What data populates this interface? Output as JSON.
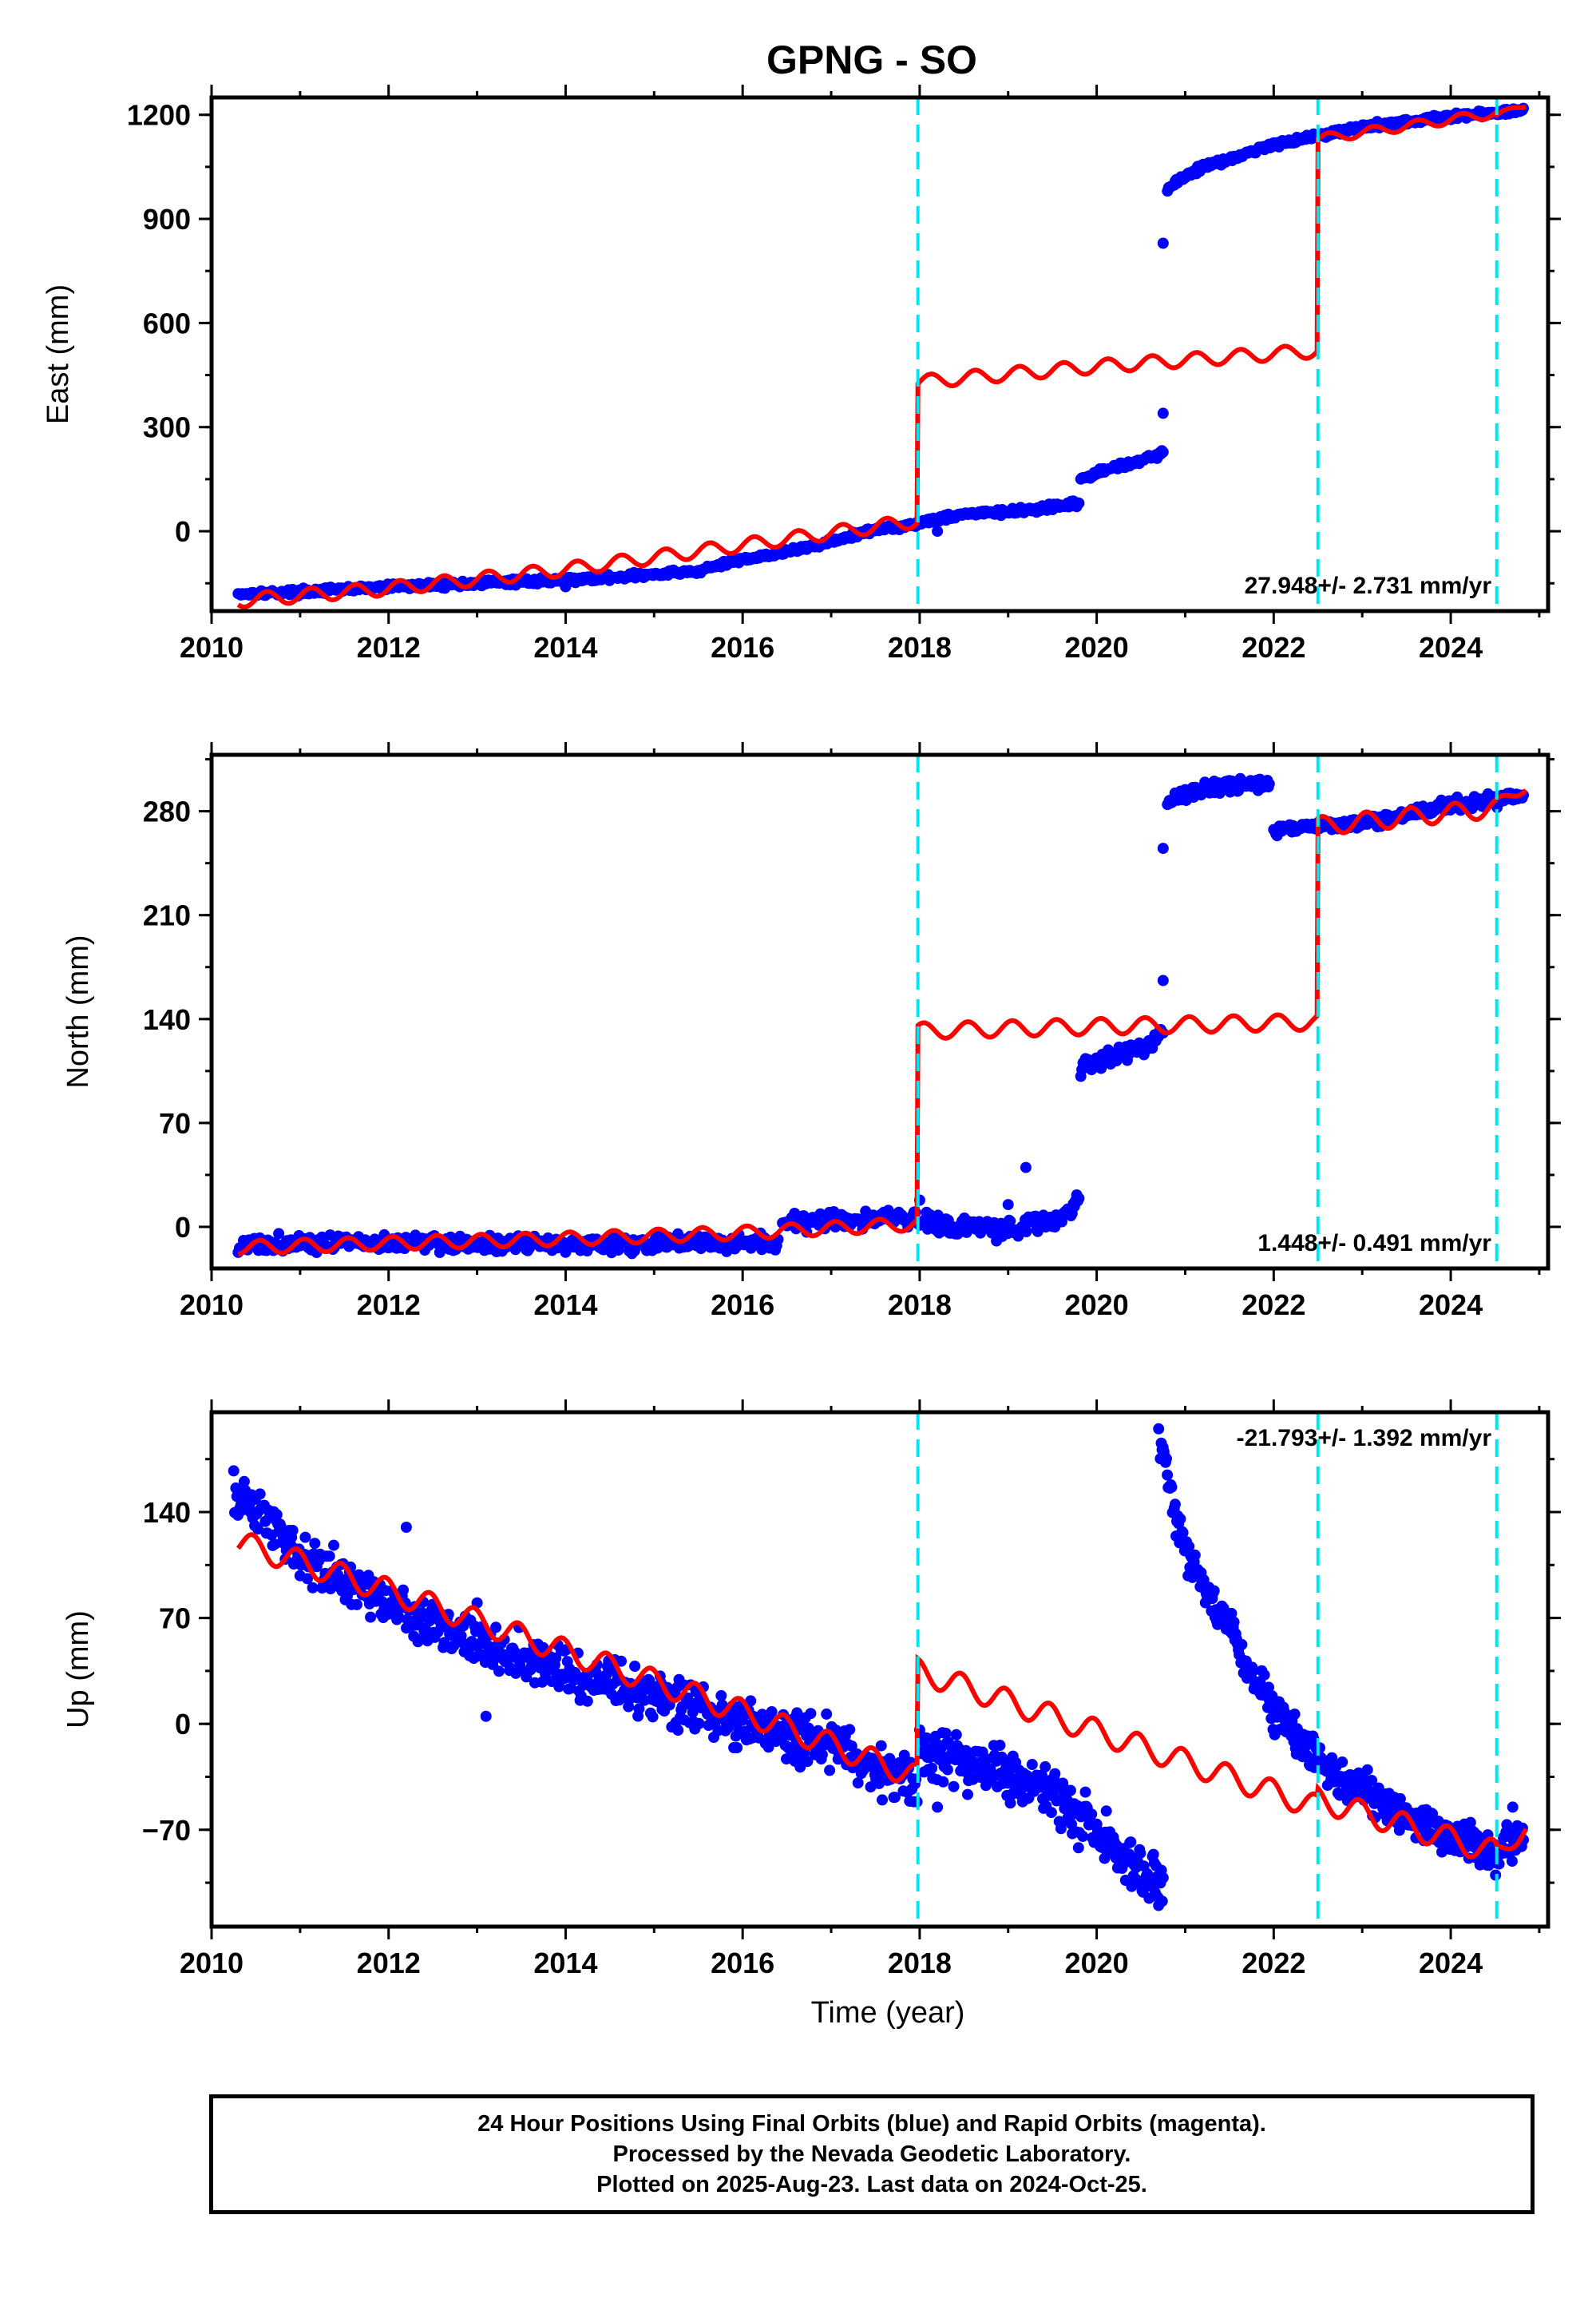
{
  "figure_title": "GPNG - SO",
  "footer": {
    "line1": "24 Hour Positions Using Final Orbits (blue) and Rapid Orbits (magenta).",
    "line2": "Processed by the Nevada Geodetic Laboratory.",
    "line3": "Plotted on 2025-Aug-23. Last data on 2024-Oct-25."
  },
  "colors": {
    "data": "#0000ff",
    "model": "#ff0000",
    "event_lines": "#00e5ee",
    "frame": "#000000"
  },
  "chart_data": [
    {
      "type": "scatter",
      "panel": "east",
      "title": "GPNG - SO",
      "ylabel": "East (mm)",
      "xlabel": "",
      "xlim": [
        2010.0,
        2025.1
      ],
      "ylim": [
        -230,
        1250
      ],
      "x_ticks": [
        2010,
        2012,
        2014,
        2016,
        2018,
        2020,
        2022,
        2024
      ],
      "y_ticks": [
        0,
        300,
        600,
        900,
        1200
      ],
      "y_tick_labels": [
        "0",
        "300",
        "600",
        "900",
        "1200"
      ],
      "event_lines": [
        2017.98,
        2022.5,
        2024.52
      ],
      "annotation": "27.948+/- 2.731 mm/yr",
      "series": [
        {
          "kind": "observed",
          "segments": [
            {
              "points": [
                [
                  2010.3,
                  -180
                ],
                [
                  2011.0,
                  -175
                ],
                [
                  2012.0,
                  -160
                ],
                [
                  2013.0,
                  -150
                ],
                [
                  2014.0,
                  -140
                ],
                [
                  2015.0,
                  -125
                ],
                [
                  2015.5,
                  -115
                ],
                [
                  2016.0,
                  -80
                ],
                [
                  2016.5,
                  -60
                ],
                [
                  2017.0,
                  -30
                ],
                [
                  2017.5,
                  5
                ],
                [
                  2017.97,
                  20
                ]
              ],
              "noise": 6,
              "count": 500
            },
            {
              "points": [
                [
                  2018.0,
                  25
                ],
                [
                  2018.5,
                  50
                ],
                [
                  2019.0,
                  55
                ],
                [
                  2019.5,
                  68
                ],
                [
                  2019.8,
                  80
                ]
              ],
              "noise": 6,
              "count": 140
            },
            {
              "points": [
                [
                  2019.82,
                  150
                ],
                [
                  2020.2,
                  185
                ],
                [
                  2020.5,
                  205
                ],
                [
                  2020.75,
                  225
                ]
              ],
              "noise": 6,
              "count": 70
            },
            {
              "points": [
                [
                  2020.8,
                  980
                ],
                [
                  2020.9,
                  1010
                ],
                [
                  2021.2,
                  1050
                ],
                [
                  2021.6,
                  1080
                ],
                [
                  2022.0,
                  1115
                ],
                [
                  2022.5,
                  1140
                ],
                [
                  2023.0,
                  1165
                ],
                [
                  2023.5,
                  1180
                ],
                [
                  2024.0,
                  1195
                ],
                [
                  2024.5,
                  1205
                ],
                [
                  2024.82,
                  1215
                ]
              ],
              "noise": 6,
              "count": 320
            }
          ],
          "outliers": [
            [
              2020.75,
              830
            ],
            [
              2020.75,
              340
            ],
            [
              2018.2,
              0
            ],
            [
              2014.0,
              -160
            ]
          ]
        },
        {
          "kind": "model",
          "segments": [
            {
              "points": [
                [
                  2010.3,
                  -200
                ],
                [
                  2012.0,
                  -165
                ],
                [
                  2014.0,
                  -110
                ],
                [
                  2016.0,
                  -40
                ],
                [
                  2017.97,
                  30
                ]
              ],
              "amp": 22
            },
            {
              "points": [
                [
                  2017.98,
                  430
                ],
                [
                  2020.0,
                  475
                ],
                [
                  2022.49,
                  520
                ]
              ],
              "amp": 22
            },
            {
              "points": [
                [
                  2022.5,
                  1130
                ],
                [
                  2024.51,
                  1205
                ]
              ],
              "amp": 15
            },
            {
              "points": [
                [
                  2024.52,
                  1198
                ],
                [
                  2024.85,
                  1230
                ]
              ],
              "amp": 8
            }
          ]
        }
      ]
    },
    {
      "type": "scatter",
      "panel": "north",
      "title": "",
      "ylabel": "North (mm)",
      "xlabel": "",
      "xlim": [
        2010.0,
        2025.1
      ],
      "ylim": [
        -28,
        318
      ],
      "x_ticks": [
        2010,
        2012,
        2014,
        2016,
        2018,
        2020,
        2022,
        2024
      ],
      "y_ticks": [
        0,
        70,
        140,
        210,
        280
      ],
      "y_tick_labels": [
        "0",
        "70",
        "140",
        "210",
        "280"
      ],
      "event_lines": [
        2017.98,
        2022.5,
        2024.52
      ],
      "annotation": "1.448+/- 0.491 mm/yr",
      "series": [
        {
          "kind": "observed",
          "segments": [
            {
              "points": [
                [
                  2010.3,
                  -12
                ],
                [
                  2012.0,
                  -10
                ],
                [
                  2014.0,
                  -12
                ],
                [
                  2015.0,
                  -12
                ],
                [
                  2016.0,
                  -10
                ],
                [
                  2016.4,
                  -12
                ]
              ],
              "noise": 4,
              "count": 400
            },
            {
              "points": [
                [
                  2016.45,
                  2
                ],
                [
                  2017.0,
                  5
                ],
                [
                  2017.5,
                  5
                ],
                [
                  2017.97,
                  6
                ]
              ],
              "noise": 4,
              "count": 90
            },
            {
              "points": [
                [
                  2018.0,
                  5
                ],
                [
                  2018.5,
                  0
                ],
                [
                  2019.0,
                  -2
                ],
                [
                  2019.5,
                  5
                ],
                [
                  2019.8,
                  15
                ]
              ],
              "noise": 5,
              "count": 140
            },
            {
              "points": [
                [
                  2019.82,
                  108
                ],
                [
                  2020.2,
                  115
                ],
                [
                  2020.5,
                  122
                ],
                [
                  2020.75,
                  130
                ]
              ],
              "noise": 4,
              "count": 70
            },
            {
              "points": [
                [
                  2020.8,
                  285
                ],
                [
                  2021.0,
                  292
                ],
                [
                  2021.5,
                  298
                ],
                [
                  2021.95,
                  298
                ]
              ],
              "noise": 3,
              "count": 110
            },
            {
              "points": [
                [
                  2022.0,
                  268
                ],
                [
                  2022.5,
                  270
                ],
                [
                  2023.0,
                  272
                ],
                [
                  2023.5,
                  278
                ],
                [
                  2024.0,
                  284
                ],
                [
                  2024.5,
                  288
                ],
                [
                  2024.82,
                  292
                ]
              ],
              "noise": 3,
              "count": 220
            }
          ],
          "outliers": [
            [
              2020.75,
              166
            ],
            [
              2020.75,
              255
            ],
            [
              2019.2,
              40
            ],
            [
              2019.0,
              15
            ],
            [
              2018.0,
              18
            ]
          ]
        },
        {
          "kind": "model",
          "segments": [
            {
              "points": [
                [
                  2010.3,
                  -14
                ],
                [
                  2012.0,
                  -11
                ],
                [
                  2014.0,
                  -8
                ],
                [
                  2016.0,
                  -4
                ],
                [
                  2017.97,
                  2
                ]
              ],
              "amp": 5
            },
            {
              "points": [
                [
                  2017.98,
                  132
                ],
                [
                  2020.0,
                  135
                ],
                [
                  2022.49,
                  138
                ]
              ],
              "amp": 6
            },
            {
              "points": [
                [
                  2022.5,
                  270
                ],
                [
                  2024.51,
                  282
                ]
              ],
              "amp": 7
            },
            {
              "points": [
                [
                  2024.52,
                  285
                ],
                [
                  2024.85,
                  297
                ]
              ],
              "amp": 4
            }
          ]
        }
      ]
    },
    {
      "type": "scatter",
      "panel": "up",
      "title": "",
      "ylabel": "Up (mm)",
      "xlabel": "Time (year)",
      "xlim": [
        2010.0,
        2025.1
      ],
      "ylim": [
        -134,
        206
      ],
      "x_ticks": [
        2010,
        2012,
        2014,
        2016,
        2018,
        2020,
        2022,
        2024
      ],
      "y_ticks": [
        -70,
        0,
        70,
        140
      ],
      "y_tick_labels": [
        "−70",
        "0",
        "70",
        "140"
      ],
      "event_lines": [
        2017.98,
        2022.5,
        2024.52
      ],
      "annotation": "-21.793+/- 1.392 mm/yr",
      "series": [
        {
          "kind": "observed",
          "segments": [
            {
              "points": [
                [
                  2010.25,
                  150
                ],
                [
                  2010.6,
                  140
                ],
                [
                  2011.0,
                  112
                ],
                [
                  2011.5,
                  95
                ],
                [
                  2012.0,
                  80
                ],
                [
                  2013.0,
                  55
                ],
                [
                  2014.0,
                  35
                ],
                [
                  2015.0,
                  20
                ],
                [
                  2016.0,
                  0
                ],
                [
                  2017.0,
                  -15
                ],
                [
                  2017.97,
                  -40
                ]
              ],
              "noise": 11,
              "count": 650
            },
            {
              "points": [
                [
                  2018.0,
                  -15
                ],
                [
                  2018.5,
                  -25
                ],
                [
                  2019.0,
                  -35
                ],
                [
                  2019.5,
                  -45
                ],
                [
                  2020.0,
                  -70
                ],
                [
                  2020.4,
                  -95
                ],
                [
                  2020.75,
                  -110
                ]
              ],
              "noise": 12,
              "count": 280
            },
            {
              "points": [
                [
                  2020.72,
                  185
                ],
                [
                  2020.85,
                  150
                ],
                [
                  2021.0,
                  115
                ],
                [
                  2021.3,
                  80
                ],
                [
                  2021.6,
                  50
                ],
                [
                  2022.0,
                  10
                ],
                [
                  2022.5,
                  -25
                ],
                [
                  2023.0,
                  -45
                ],
                [
                  2023.5,
                  -60
                ],
                [
                  2024.0,
                  -75
                ],
                [
                  2024.5,
                  -85
                ],
                [
                  2024.82,
                  -75
                ]
              ],
              "noise": 9,
              "count": 420
            }
          ],
          "outliers": [
            [
              2020.7,
              195
            ],
            [
              2012.2,
              130
            ],
            [
              2013.1,
              5
            ],
            [
              2018.2,
              -55
            ],
            [
              2013.0,
              80
            ],
            [
              2020.7,
              -120
            ],
            [
              2024.7,
              -55
            ]
          ]
        },
        {
          "kind": "model",
          "segments": [
            {
              "points": [
                [
                  2010.3,
                  120
                ],
                [
                  2012.0,
                  88
                ],
                [
                  2014.0,
                  48
                ],
                [
                  2016.0,
                  8
                ],
                [
                  2017.97,
                  -35
                ]
              ],
              "amp": 9
            },
            {
              "points": [
                [
                  2017.98,
                  35
                ],
                [
                  2020.0,
                  -5
                ],
                [
                  2022.49,
                  -55
                ]
              ],
              "amp": 9
            },
            {
              "points": [
                [
                  2022.5,
                  -50
                ],
                [
                  2024.51,
                  -85
                ]
              ],
              "amp": 9
            },
            {
              "points": [
                [
                  2024.52,
                  -85
                ],
                [
                  2024.85,
                  -70
                ]
              ],
              "amp": 6
            }
          ]
        }
      ]
    }
  ]
}
